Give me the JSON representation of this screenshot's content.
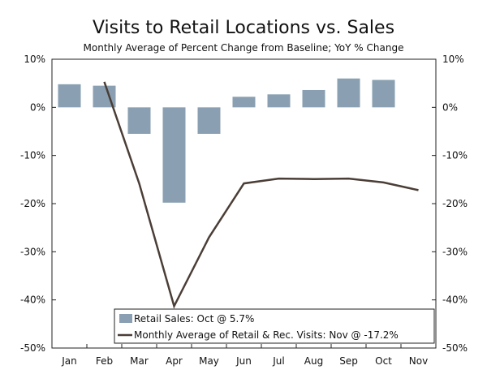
{
  "chart_data": {
    "type": "bar+line",
    "title": "Visits to Retail Locations vs. Sales",
    "subtitle": "Monthly Average of Percent Change from Baseline; YoY % Change",
    "categories": [
      "Jan",
      "Feb",
      "Mar",
      "Apr",
      "May",
      "Jun",
      "Jul",
      "Aug",
      "Sep",
      "Oct",
      "Nov"
    ],
    "ylim": [
      -50,
      10
    ],
    "yticks": [
      10,
      0,
      -10,
      -20,
      -30,
      -40,
      -50
    ],
    "ytick_labels": [
      "10%",
      "0%",
      "-10%",
      "-20%",
      "-30%",
      "-40%",
      "-50%"
    ],
    "series": [
      {
        "name": "Retail Sales",
        "type": "bar",
        "color": "#8aa0b2",
        "values": [
          4.8,
          4.5,
          -5.5,
          -19.8,
          -5.5,
          2.2,
          2.7,
          3.6,
          6.0,
          5.7,
          null
        ]
      },
      {
        "name": "Monthly Average of Retail & Rec. Visits",
        "type": "line",
        "color": "#4a3e36",
        "values": [
          null,
          5.3,
          -15.8,
          -41.3,
          -27.0,
          -15.8,
          -14.8,
          -14.9,
          -14.8,
          -15.6,
          -17.2
        ]
      }
    ],
    "legend": {
      "position": "bottom-center",
      "items": [
        "Retail Sales: Oct @ 5.7%",
        "Monthly Average of Retail & Rec. Visits: Nov @ -17.2%"
      ]
    }
  }
}
